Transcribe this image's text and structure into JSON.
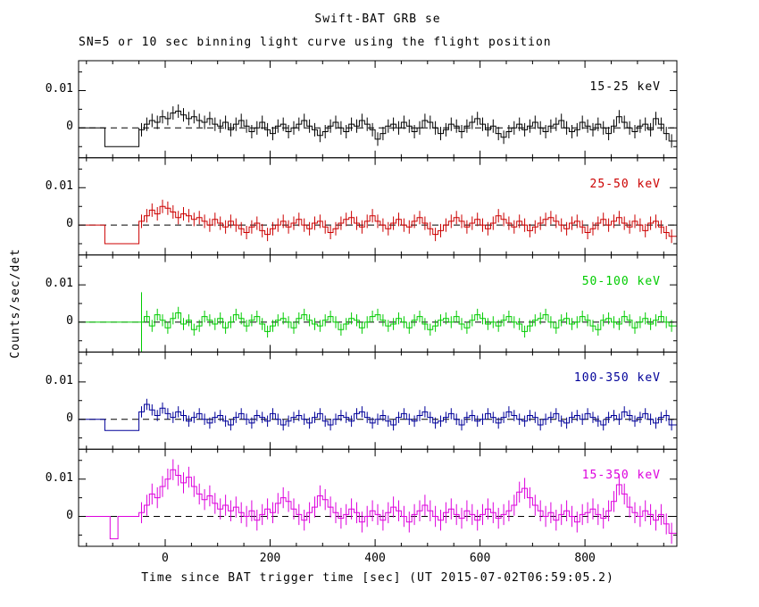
{
  "figure": {
    "title": "Swift-BAT GRB se",
    "subtitle": "SN=5 or 10 sec binning light curve using the flight position",
    "xlabel": "Time since BAT trigger time [sec] (UT 2015-07-02T06:59:05.2)",
    "ylabel": "Counts/sec/det"
  },
  "chart_data": {
    "type": "line",
    "subtype": "step-histogram-light-curve-with-error-bars",
    "title": "Swift-BAT GRB se",
    "subtitle": "SN=5 or 10 sec binning light curve using the flight position",
    "xlabel": "Time since BAT trigger time [sec] (UT 2015-07-02T06:59:05.2)",
    "ylabel": "Counts/sec/det",
    "x_axis": {
      "range": [
        -165,
        975
      ],
      "major_ticks": [
        0,
        200,
        400,
        600,
        800
      ],
      "minor_tick_step": 50,
      "bin_width_sec": 10
    },
    "y_axis": {
      "range": [
        -0.008,
        0.018
      ],
      "labeled_ticks": [
        0,
        0.01
      ],
      "minor_ticks": [
        -0.005,
        0.005,
        0.015
      ]
    },
    "zero_line": "dashed",
    "value_scale": 0.001,
    "t_start": -45,
    "t_step": 10,
    "series": [
      {
        "label": "15-25 keV",
        "color": "#000000",
        "err_milli": 1.8,
        "pre_trigger": {
          "flat_from": -165,
          "dip_from": -115,
          "dip_to": -50,
          "dip_milli": -5.0
        },
        "y_milli": [
          -0.5,
          1.0,
          2.0,
          1.5,
          3.0,
          2.5,
          4.0,
          4.5,
          3.5,
          2.5,
          3.0,
          2.0,
          1.5,
          2.5,
          1.0,
          0.5,
          1.5,
          -0.5,
          1.0,
          2.0,
          0.5,
          -1.0,
          0.0,
          1.5,
          -0.5,
          -1.5,
          0.5,
          1.0,
          -1.0,
          0.0,
          1.0,
          2.0,
          0.5,
          -0.5,
          -2.0,
          -1.0,
          0.5,
          1.5,
          0.0,
          -1.0,
          1.0,
          0.5,
          2.0,
          1.0,
          -0.5,
          -3.0,
          -1.5,
          0.5,
          1.0,
          0.0,
          1.5,
          0.5,
          -1.0,
          0.0,
          2.0,
          1.5,
          0.0,
          -1.5,
          -0.5,
          1.0,
          0.5,
          -1.0,
          0.5,
          1.5,
          2.5,
          1.0,
          -0.5,
          0.5,
          -1.5,
          -2.5,
          -1.0,
          0.0,
          1.0,
          -0.5,
          0.5,
          1.5,
          0.0,
          -1.0,
          0.5,
          1.0,
          2.0,
          0.0,
          -1.0,
          -0.5,
          1.5,
          0.5,
          -0.5,
          1.0,
          0.0,
          -1.5,
          0.5,
          3.0,
          1.5,
          0.0,
          -1.0,
          0.5,
          1.0,
          -0.5,
          2.5,
          1.0,
          -1.5,
          -3.5
        ]
      },
      {
        "label": "25-50 keV",
        "color": "#cc0000",
        "err_milli": 1.8,
        "pre_trigger": {
          "flat_from": -165,
          "dip_from": -115,
          "dip_to": -50,
          "dip_milli": -5.0
        },
        "y_milli": [
          1.0,
          2.5,
          4.0,
          3.0,
          5.0,
          4.5,
          3.5,
          2.0,
          3.0,
          2.5,
          1.5,
          2.0,
          1.0,
          0.0,
          1.5,
          0.5,
          -0.5,
          1.0,
          0.0,
          -1.0,
          -2.0,
          -0.5,
          0.5,
          -1.5,
          -2.5,
          -1.0,
          0.0,
          1.0,
          -0.5,
          0.5,
          1.5,
          0.0,
          -1.0,
          0.5,
          1.0,
          -0.5,
          -2.0,
          -1.0,
          0.5,
          1.5,
          2.0,
          0.5,
          -0.5,
          1.0,
          2.5,
          1.0,
          0.0,
          -1.0,
          0.5,
          1.5,
          0.0,
          -0.5,
          1.0,
          2.0,
          0.5,
          -1.0,
          -2.5,
          -1.5,
          0.0,
          1.0,
          2.0,
          1.0,
          -0.5,
          0.5,
          1.5,
          0.0,
          -1.0,
          0.5,
          2.5,
          1.5,
          0.5,
          -0.5,
          1.0,
          0.0,
          -1.5,
          -0.5,
          0.5,
          1.5,
          2.0,
          1.0,
          0.0,
          -1.0,
          0.5,
          1.0,
          -0.5,
          -2.0,
          -1.0,
          0.5,
          1.5,
          0.0,
          1.0,
          2.0,
          0.5,
          -0.5,
          1.0,
          0.0,
          -1.5,
          0.5,
          1.0,
          -0.5,
          -2.0,
          -3.0
        ]
      },
      {
        "label": "50-100 keV",
        "color": "#00cc00",
        "err_milli": 1.6,
        "first_bin_err_milli": 8.0,
        "pre_trigger": {
          "flat_from": -165,
          "dip_from": null,
          "dip_to": null,
          "dip_milli": null
        },
        "y_milli": [
          0.0,
          1.5,
          -1.0,
          2.0,
          0.5,
          -1.5,
          1.0,
          2.5,
          -0.5,
          0.5,
          -2.0,
          -1.0,
          1.5,
          0.5,
          -0.5,
          1.0,
          -1.5,
          0.0,
          2.0,
          1.0,
          -1.0,
          0.5,
          1.5,
          -0.5,
          -2.5,
          -1.0,
          0.5,
          1.0,
          0.0,
          -1.5,
          1.0,
          2.0,
          0.5,
          -0.5,
          -1.0,
          0.5,
          1.5,
          0.0,
          -2.0,
          -0.5,
          1.0,
          0.5,
          -1.5,
          0.0,
          1.5,
          2.0,
          0.5,
          -1.0,
          -0.5,
          1.0,
          0.0,
          -1.5,
          0.5,
          1.5,
          -0.5,
          -2.0,
          -1.0,
          0.5,
          1.0,
          0.0,
          1.5,
          -0.5,
          -1.5,
          0.5,
          2.0,
          1.0,
          -0.5,
          0.0,
          -1.0,
          0.5,
          1.5,
          0.0,
          -0.5,
          -2.5,
          -1.0,
          0.5,
          1.0,
          2.0,
          0.0,
          -1.5,
          0.5,
          1.0,
          -0.5,
          0.0,
          1.5,
          0.5,
          -1.0,
          -2.0,
          0.5,
          1.0,
          0.0,
          -0.5,
          1.5,
          0.5,
          -1.5,
          0.0,
          1.0,
          -0.5,
          0.5,
          1.5,
          0.0,
          -1.0
        ]
      },
      {
        "label": "100-350 keV",
        "color": "#000099",
        "err_milli": 1.5,
        "pre_trigger": {
          "flat_from": -165,
          "dip_from": -115,
          "dip_to": -50,
          "dip_milli": -3.0
        },
        "y_milli": [
          2.0,
          4.0,
          2.5,
          1.0,
          3.0,
          1.5,
          0.5,
          2.0,
          1.0,
          -0.5,
          0.5,
          1.5,
          0.0,
          -1.0,
          0.5,
          1.0,
          -0.5,
          -1.5,
          0.5,
          1.5,
          0.0,
          -1.0,
          1.0,
          0.5,
          -0.5,
          1.5,
          0.0,
          -1.5,
          -0.5,
          0.5,
          1.0,
          0.0,
          -1.0,
          0.5,
          1.5,
          -0.5,
          -1.5,
          0.0,
          1.0,
          0.5,
          -0.5,
          1.5,
          2.0,
          0.5,
          -1.0,
          0.0,
          1.0,
          -0.5,
          -1.5,
          0.5,
          1.5,
          0.0,
          -0.5,
          1.0,
          2.0,
          0.5,
          -1.0,
          -0.5,
          0.5,
          1.5,
          0.0,
          -1.5,
          0.5,
          1.0,
          -0.5,
          0.0,
          1.5,
          0.5,
          -1.0,
          0.5,
          2.0,
          1.0,
          0.0,
          -0.5,
          1.0,
          0.5,
          -1.5,
          0.0,
          0.5,
          1.5,
          -0.5,
          -1.0,
          0.5,
          1.0,
          0.0,
          1.5,
          0.5,
          -0.5,
          -1.5,
          0.5,
          1.0,
          0.0,
          2.0,
          1.0,
          -0.5,
          0.5,
          1.5,
          0.0,
          -1.0,
          0.5,
          1.0,
          -1.5
        ]
      },
      {
        "label": "15-350 keV",
        "color": "#dd00dd",
        "err_milli": 2.8,
        "pre_trigger": {
          "flat_from": -165,
          "dip_from": -105,
          "dip_to": -90,
          "dip_milli": -6.0
        },
        "y_milli": [
          1.0,
          3.0,
          6.0,
          5.0,
          8.0,
          10.0,
          12.5,
          11.0,
          9.0,
          10.5,
          8.0,
          6.0,
          4.5,
          5.5,
          3.5,
          2.0,
          3.0,
          1.5,
          2.5,
          1.0,
          0.0,
          1.5,
          -1.0,
          0.5,
          2.0,
          1.0,
          3.5,
          5.0,
          4.0,
          2.0,
          0.5,
          -1.0,
          1.0,
          2.5,
          5.5,
          4.5,
          2.5,
          1.0,
          -0.5,
          0.5,
          2.0,
          1.0,
          -1.5,
          0.0,
          1.5,
          0.5,
          -1.0,
          1.0,
          2.5,
          1.5,
          0.0,
          -1.5,
          0.5,
          1.5,
          3.0,
          1.5,
          0.0,
          -1.0,
          1.0,
          2.0,
          0.5,
          -0.5,
          1.5,
          0.5,
          -1.0,
          0.5,
          2.0,
          1.0,
          -0.5,
          0.5,
          1.5,
          3.0,
          6.5,
          7.5,
          5.0,
          3.0,
          1.5,
          0.0,
          1.0,
          -1.0,
          0.5,
          1.5,
          0.0,
          -1.5,
          0.5,
          1.0,
          2.0,
          0.5,
          -0.5,
          1.5,
          4.0,
          8.5,
          6.0,
          2.5,
          1.0,
          0.0,
          1.5,
          0.5,
          -1.0,
          0.5,
          -2.0,
          -4.5
        ]
      }
    ]
  }
}
